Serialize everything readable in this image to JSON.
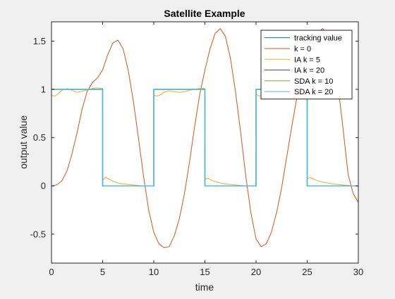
{
  "chart_data": {
    "type": "line",
    "title": "Satellite Example",
    "xlabel": "time",
    "ylabel": "output value",
    "xlim": [
      0,
      30
    ],
    "ylim": [
      -0.8,
      1.7
    ],
    "xticks": [
      0,
      5,
      10,
      15,
      20,
      25,
      30
    ],
    "xtick_labels": [
      "0",
      "5",
      "10",
      "15",
      "20",
      "25",
      "30"
    ],
    "yticks": [
      -0.5,
      0,
      0.5,
      1,
      1.5
    ],
    "ytick_labels": [
      "-0.5",
      "0",
      "0.5",
      "1",
      "1.5"
    ],
    "grid": false,
    "legend_position": "top-right",
    "series": [
      {
        "name": "tracking value",
        "color": "#0072BD",
        "x": [
          0,
          5,
          5,
          10,
          10,
          15,
          15,
          20,
          20,
          25,
          25,
          30
        ],
        "y": [
          1,
          1,
          0,
          0,
          1,
          1,
          0,
          0,
          1,
          1,
          0,
          0
        ]
      },
      {
        "name": "k = 0",
        "color": "#D95319",
        "x": [
          0,
          0.5,
          1,
          1.5,
          2,
          2.5,
          3,
          3.5,
          4,
          4.5,
          5,
          5.5,
          6,
          6.5,
          7,
          7.5,
          8,
          8.5,
          9,
          9.5,
          10,
          10.5,
          11,
          11.5,
          12,
          12.5,
          13,
          13.5,
          14,
          14.5,
          15,
          15.5,
          16,
          16.5,
          17,
          17.5,
          18,
          18.5,
          19,
          19.5,
          20,
          20.5,
          21,
          21.5,
          22,
          22.5,
          23,
          23.5,
          24,
          24.5,
          25,
          25.5,
          26,
          26.5,
          27,
          27.5,
          28,
          28.5,
          29,
          29.5,
          30
        ],
        "y": [
          0,
          0.01,
          0.05,
          0.15,
          0.33,
          0.55,
          0.8,
          0.98,
          1.07,
          1.12,
          1.2,
          1.36,
          1.48,
          1.51,
          1.42,
          1.2,
          0.88,
          0.5,
          0.1,
          -0.25,
          -0.48,
          -0.6,
          -0.64,
          -0.63,
          -0.52,
          -0.34,
          -0.08,
          0.25,
          0.62,
          0.95,
          1.2,
          1.42,
          1.58,
          1.63,
          1.55,
          1.32,
          0.97,
          0.55,
          0.1,
          -0.28,
          -0.55,
          -0.63,
          -0.6,
          -0.48,
          -0.28,
          -0.02,
          0.3,
          0.62,
          0.92,
          1.15,
          1.3,
          1.45,
          1.58,
          1.63,
          1.58,
          1.4,
          1.05,
          0.6,
          0.12,
          -0.08,
          -0.17
        ]
      },
      {
        "name": "IA k = 5",
        "color": "#EDB120",
        "x": [
          0,
          0.3,
          0.6,
          1.0,
          1.5,
          2.0,
          2.5,
          3.0,
          3.5,
          4.0,
          4.5,
          4.99,
          5.01,
          5.3,
          5.6,
          6.0,
          6.5,
          7.0,
          7.5,
          8.0,
          8.5,
          9.0,
          9.5,
          9.99,
          10.01,
          10.3,
          10.6,
          11.0,
          11.5,
          12.0,
          12.5,
          13.0,
          13.5,
          14.0,
          14.5,
          14.99,
          15.01,
          15.3,
          15.6,
          16.0,
          16.5,
          17.0,
          17.5,
          18.0,
          18.5,
          19.0,
          19.5,
          19.99,
          20.01,
          20.3,
          20.6,
          21.0,
          21.5,
          22.0,
          22.5,
          23.0,
          23.5,
          24.0,
          24.5,
          24.99,
          25.01,
          25.3,
          25.6,
          26.0,
          26.5,
          27.0,
          27.5,
          28.0,
          28.5,
          29.0,
          29.5,
          30
        ],
        "y": [
          0.94,
          0.93,
          0.95,
          0.99,
          1.01,
          0.99,
          0.97,
          0.98,
          0.995,
          1.01,
          1.015,
          1.01,
          0.06,
          0.09,
          0.07,
          0.05,
          0.03,
          0.02,
          0.015,
          0.01,
          0.005,
          0.0,
          0.0,
          0.0,
          0.94,
          0.93,
          0.94,
          0.97,
          0.985,
          0.975,
          0.97,
          0.975,
          0.99,
          1.0,
          1.01,
          1.01,
          0.07,
          0.08,
          0.06,
          0.045,
          0.03,
          0.02,
          0.015,
          0.01,
          0.005,
          0.0,
          0.0,
          0.0,
          0.95,
          0.93,
          0.94,
          0.96,
          0.98,
          0.985,
          0.975,
          0.975,
          0.98,
          0.99,
          1.0,
          1.0,
          0.07,
          0.09,
          0.07,
          0.055,
          0.04,
          0.03,
          0.02,
          0.015,
          0.01,
          0.005,
          0.0,
          0.0
        ]
      },
      {
        "name": "IA k = 20",
        "color": "#7E2F8E",
        "x": [
          0,
          5,
          5,
          10,
          10,
          15,
          15,
          20,
          20,
          25,
          25,
          30
        ],
        "y": [
          1,
          1,
          0,
          0,
          1,
          1,
          0,
          0,
          1,
          1,
          0,
          0
        ]
      },
      {
        "name": "SDA k = 10",
        "color": "#77AC30",
        "x": [
          0,
          5,
          5,
          10,
          10,
          15,
          15,
          20,
          20,
          25,
          25,
          30
        ],
        "y": [
          1,
          1,
          0,
          0,
          1,
          1,
          0,
          0,
          1,
          1,
          0,
          0
        ]
      },
      {
        "name": "SDA k = 20",
        "color": "#4DBEEE",
        "x": [
          0,
          5,
          5,
          10,
          10,
          15,
          15,
          20,
          20,
          25,
          25,
          30
        ],
        "y": [
          1,
          1,
          0,
          0,
          1,
          1,
          0,
          0,
          1,
          1,
          0,
          0
        ]
      }
    ]
  }
}
